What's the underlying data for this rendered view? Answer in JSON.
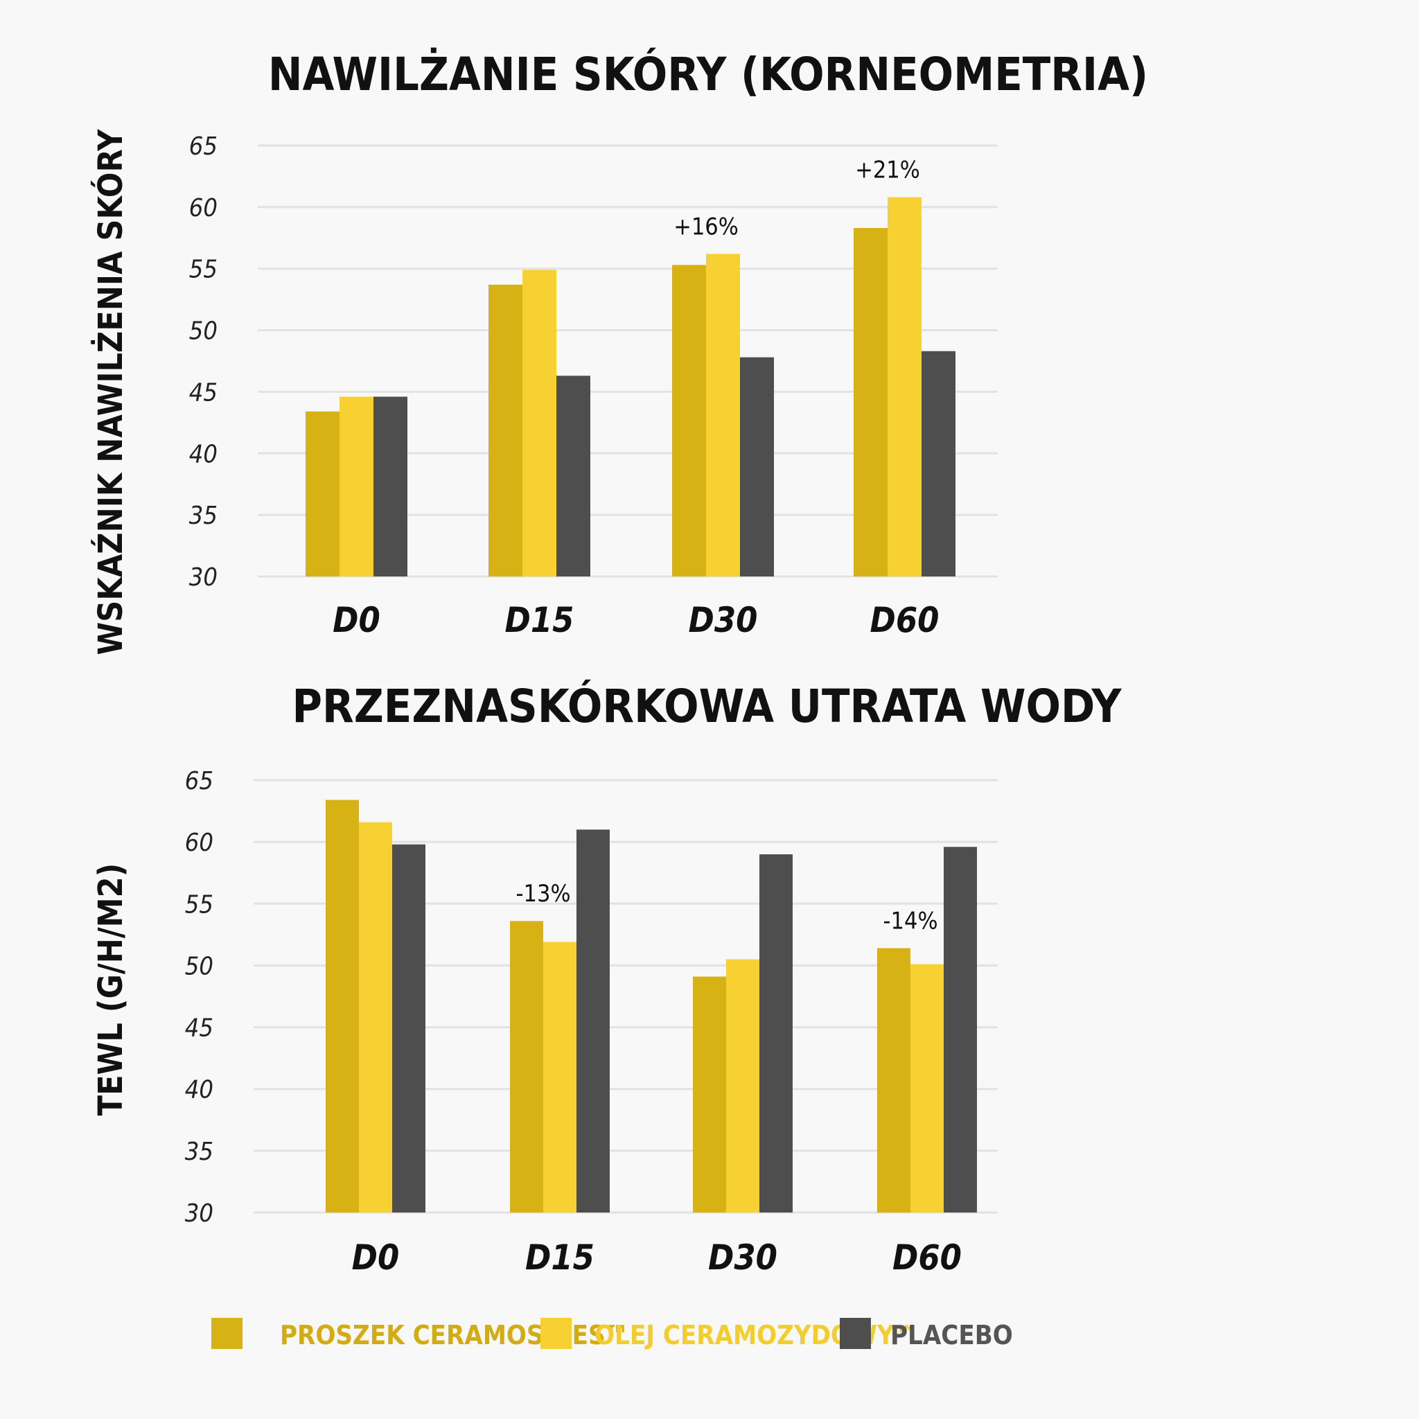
{
  "colors": {
    "proszek": "#d7b215",
    "olej": "#f7d132",
    "placebo": "#4e4e4e",
    "legend_placebo_text": "#555555"
  },
  "legend": {
    "position": "bottom",
    "items": [
      {
        "label": "PROSZEK CERAMOSIDES™",
        "color": "#d7b215",
        "text_color": "#d2ac12"
      },
      {
        "label": "OLEJ CERAMOZYDOWY™",
        "color": "#f7d132",
        "text_color": "#f3cd2c"
      },
      {
        "label": "PLACEBO",
        "color": "#4e4e4e",
        "text_color": "#555555"
      }
    ]
  },
  "chart_data": [
    {
      "type": "bar",
      "title": "NAWILŻANIE SKÓRY (KORNEOMETRIA)",
      "ylabel": "WSKAŹNIK NAWILŻENIA SKÓRY",
      "xlabel": "",
      "ylim": [
        30,
        65
      ],
      "yticks": [
        65,
        60,
        55,
        50,
        45,
        40,
        35,
        30
      ],
      "grid": true,
      "categories": [
        "D0",
        "D15",
        "D30",
        "D60"
      ],
      "series": [
        {
          "name": "PROSZEK CERAMOSIDES™",
          "values": [
            43.4,
            53.7,
            55.3,
            58.3
          ]
        },
        {
          "name": "OLEJ CERAMOZYDOWY™",
          "values": [
            44.6,
            54.9,
            56.2,
            60.8
          ]
        },
        {
          "name": "PLACEBO",
          "values": [
            44.6,
            46.3,
            47.8,
            48.3
          ]
        }
      ],
      "annotations": [
        {
          "category": "D30",
          "text": "+16%"
        },
        {
          "category": "D60",
          "text": "+21%"
        }
      ]
    },
    {
      "type": "bar",
      "title": "PRZEZNASKÓRKOWA UTRATA WODY",
      "ylabel": "TEWL (G/H/M2)",
      "xlabel": "",
      "ylim": [
        30,
        65
      ],
      "yticks": [
        65,
        60,
        55,
        50,
        45,
        40,
        35,
        30
      ],
      "grid": true,
      "categories": [
        "D0",
        "D15",
        "D30",
        "D60"
      ],
      "series": [
        {
          "name": "PROSZEK CERAMOSIDES™",
          "values": [
            63.4,
            53.6,
            49.1,
            51.4
          ]
        },
        {
          "name": "OLEJ CERAMOZYDOWY™",
          "values": [
            61.6,
            51.9,
            50.5,
            50.1
          ]
        },
        {
          "name": "PLACEBO",
          "values": [
            59.8,
            61.0,
            59.0,
            59.6
          ]
        }
      ],
      "annotations": [
        {
          "category": "D15",
          "text": "-13%"
        },
        {
          "category": "D60",
          "text": "-14%"
        }
      ]
    }
  ]
}
